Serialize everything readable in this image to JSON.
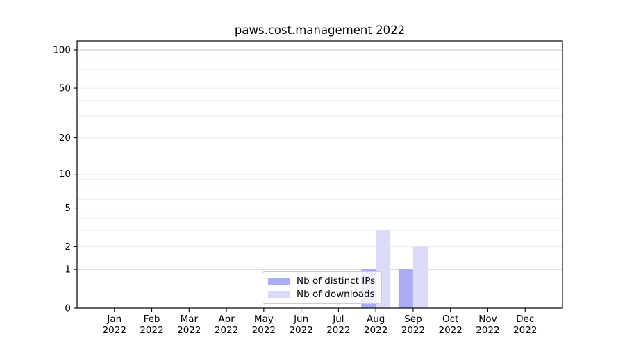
{
  "chart_data": {
    "type": "bar",
    "title": "paws.cost.management 2022",
    "categories": [
      "Jan 2022",
      "Feb 2022",
      "Mar 2022",
      "Apr 2022",
      "May 2022",
      "Jun 2022",
      "Jul 2022",
      "Aug 2022",
      "Sep 2022",
      "Oct 2022",
      "Nov 2022",
      "Dec 2022"
    ],
    "series": [
      {
        "name": "Nb of distinct IPs",
        "color": "#ababf4",
        "values": [
          0,
          0,
          0,
          0,
          0,
          0,
          0,
          1,
          1,
          0,
          0,
          0
        ]
      },
      {
        "name": "Nb of downloads",
        "color": "#dbdbf8",
        "values": [
          0,
          0,
          0,
          0,
          0,
          0,
          0,
          3,
          2,
          0,
          0,
          0
        ]
      }
    ],
    "yscale": "log1p",
    "yticks": [
      0,
      1,
      2,
      5,
      10,
      20,
      50,
      100
    ],
    "ylim": [
      0,
      117
    ],
    "xlabel": "",
    "ylabel": "",
    "grid": true,
    "legend_position": "lower center",
    "colors": {
      "grid_major": "#c6c6c6",
      "grid_minor": "#ebebeb",
      "axis": "#000000",
      "tick_label": "#000000"
    }
  }
}
